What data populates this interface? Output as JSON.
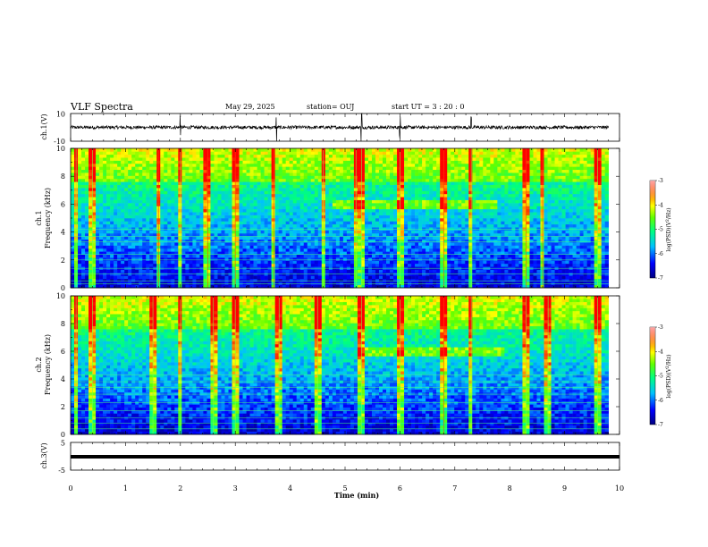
{
  "header": {
    "title": "VLF Spectra",
    "date": "May 29, 2025",
    "station": "station= OUJ",
    "start": "start  UT =   3  : 20 : 0"
  },
  "chart_data": [
    {
      "type": "line",
      "name": "ch1-waveform",
      "ylabel": "ch.1(V)",
      "xlim": [
        0,
        10
      ],
      "ylim": [
        -10,
        10
      ],
      "yticks": [
        "10",
        "-10"
      ],
      "baseline": 0,
      "note_spikes_min": [
        2.0,
        3.75,
        5.3,
        6.0,
        7.3
      ]
    },
    {
      "type": "heatmap",
      "name": "ch1-spectrogram",
      "ylabel": "ch.1\nFrequency (kHz)",
      "xlim": [
        0,
        10
      ],
      "data_xmax": 9.8,
      "ylim": [
        0,
        10
      ],
      "yticks": [
        "0",
        "2",
        "4",
        "6",
        "8",
        "10"
      ],
      "colorbar": {
        "label": "log(PSD)(V²/Hz)",
        "range": [
          -7,
          -3
        ],
        "ticks": [
          "-3",
          "-4",
          "-5",
          "-6",
          "-7"
        ]
      },
      "features": {
        "band_6khz": [
          4.8,
          7.8
        ],
        "hum_lines_khz": [
          0.3,
          0.5,
          1.0,
          1.4,
          2.0,
          2.4,
          3.3,
          3.7,
          4.2
        ],
        "spikes_min": [
          0.1,
          0.4,
          1.6,
          2.0,
          2.5,
          3.0,
          3.7,
          4.6,
          5.2,
          5.3,
          6.0,
          6.8,
          7.3,
          8.3,
          8.6,
          9.6
        ]
      }
    },
    {
      "type": "heatmap",
      "name": "ch2-spectrogram",
      "ylabel": "ch.2\nFrequency (kHz)",
      "xlim": [
        0,
        10
      ],
      "data_xmax": 9.8,
      "ylim": [
        0,
        10
      ],
      "yticks": [
        "0",
        "2",
        "4",
        "6",
        "8",
        "10"
      ],
      "colorbar": {
        "label": "log(PSD)(V²/Hz)",
        "range": [
          -7,
          -3
        ],
        "ticks": [
          "-3",
          "-4",
          "-5",
          "-6",
          "-7"
        ]
      },
      "features": {
        "band_6khz": [
          5.2,
          7.9
        ],
        "hum_lines_khz": [
          0.4,
          0.8,
          1.2,
          1.7,
          2.3,
          2.9,
          3.4,
          3.8,
          4.3
        ],
        "spikes_min": [
          0.1,
          0.4,
          1.5,
          2.0,
          2.6,
          3.0,
          3.8,
          4.5,
          5.3,
          6.0,
          6.8,
          7.3,
          8.3,
          8.7,
          9.6
        ]
      }
    },
    {
      "type": "line",
      "name": "ch3-waveform",
      "ylabel": "ch.3(V)",
      "xlim": [
        0,
        10
      ],
      "ylim": [
        -5,
        5
      ],
      "yticks": [
        "5",
        "-5"
      ],
      "baseline": 0
    }
  ],
  "xaxis": {
    "label": "Time (min)",
    "ticks": [
      "0",
      "1",
      "2",
      "3",
      "4",
      "5",
      "6",
      "7",
      "8",
      "9",
      "10"
    ]
  }
}
